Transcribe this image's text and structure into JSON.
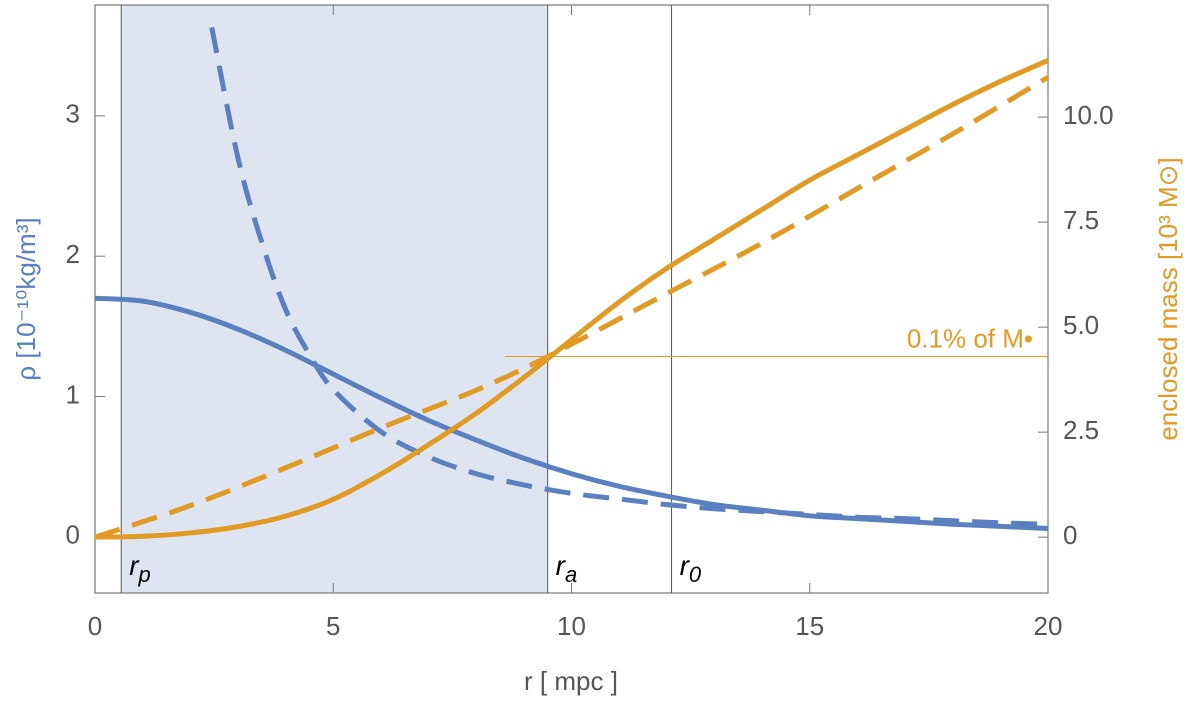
{
  "chart_data": {
    "type": "line",
    "xlabel": "r [ mpc ]",
    "ylabel": "ρ [10⁻¹⁰kg/m³]",
    "y2label": "enclosed mass [10³ M⊙]",
    "xlim": [
      0,
      20
    ],
    "xticks": [
      0,
      5,
      10,
      15,
      20
    ],
    "ylim": [
      -0.4,
      3.79
    ],
    "yticks": [
      0,
      1,
      2,
      3
    ],
    "y2lim": [
      -1.33,
      12.67
    ],
    "y2ticks": [
      0,
      2.5,
      {
        "value": 5,
        "label": "5.0"
      },
      7.5,
      {
        "value": 10,
        "label": "10.0"
      }
    ],
    "ylabel_color": "#5a80bf",
    "y2label_color": "#e19a24",
    "shaded": {
      "x": [
        0.55,
        9.5
      ],
      "color": "#dfe5f0"
    },
    "vlines": [
      {
        "value": 0.55,
        "label": "r",
        "sub": "p"
      },
      {
        "value": 9.5,
        "label": "r",
        "sub": "a"
      },
      {
        "value": 12.1,
        "label": "r",
        "sub": "0"
      }
    ],
    "hline": {
      "axis": "y2",
      "value": 4.3,
      "x": [
        8.6,
        20
      ],
      "label": "0.1% of M•",
      "color": "#e19a24"
    },
    "series": [
      {
        "color": "#5a80bf",
        "dashed": false,
        "x": [
          0,
          1,
          2,
          3,
          4,
          5,
          6,
          7,
          8,
          9,
          10,
          11,
          12,
          13,
          14,
          15,
          16,
          17,
          18,
          19,
          20
        ],
        "values": [
          1.7,
          1.68,
          1.6,
          1.48,
          1.33,
          1.16,
          0.99,
          0.83,
          0.69,
          0.56,
          0.45,
          0.36,
          0.29,
          0.23,
          0.19,
          0.15,
          0.13,
          0.11,
          0.09,
          0.075,
          0.06
        ]
      },
      {
        "color": "#5a80bf",
        "dashed": true,
        "x": [
          2.45,
          3,
          3.5,
          4,
          4.5,
          5,
          6,
          7,
          8,
          9,
          10,
          11,
          12,
          13,
          14,
          15,
          16,
          17,
          18,
          19,
          20
        ],
        "values": [
          3.63,
          2.7,
          2.1,
          1.62,
          1.3,
          1.05,
          0.75,
          0.57,
          0.45,
          0.37,
          0.31,
          0.27,
          0.23,
          0.2,
          0.18,
          0.16,
          0.14,
          0.13,
          0.115,
          0.1,
          0.09
        ]
      },
      {
        "color": "#e19a24",
        "dashed": false,
        "axis": "y2",
        "x": [
          0,
          1,
          2,
          3,
          4,
          5,
          6,
          7,
          8,
          9,
          10,
          11,
          12,
          13,
          14,
          15,
          16,
          17,
          18,
          19,
          20
        ],
        "values": [
          0,
          0.02,
          0.1,
          0.25,
          0.5,
          0.9,
          1.5,
          2.2,
          2.95,
          3.8,
          4.7,
          5.6,
          6.4,
          7.1,
          7.8,
          8.5,
          9.1,
          9.7,
          10.3,
          10.85,
          11.35
        ]
      },
      {
        "color": "#e19a24",
        "dashed": true,
        "axis": "y2",
        "x": [
          0,
          2,
          4,
          6,
          8,
          9.5,
          12,
          14,
          16,
          18,
          20
        ],
        "values": [
          0,
          0.75,
          1.65,
          2.6,
          3.5,
          4.3,
          5.8,
          7.0,
          8.3,
          9.6,
          10.95
        ]
      }
    ]
  }
}
